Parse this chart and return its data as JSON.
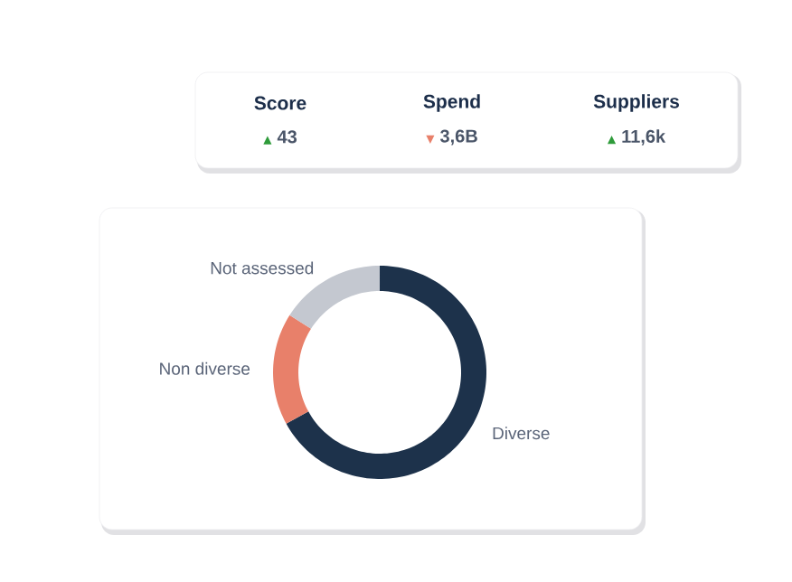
{
  "chart_data": [
    {
      "type": "other",
      "categories": [
        "Score",
        "Spend",
        "Suppliers"
      ],
      "value_labels": [
        "43",
        "3,6B",
        "11,6k"
      ],
      "annotations": [
        "▲",
        "▼",
        "▲"
      ]
    },
    {
      "type": "donut",
      "categories": [
        "Diverse",
        "Non diverse",
        "Not assessed"
      ],
      "values": [
        67,
        17,
        16
      ],
      "colors": [
        "#1d324b",
        "#e8806a",
        "#c4c8d0"
      ]
    }
  ]
}
